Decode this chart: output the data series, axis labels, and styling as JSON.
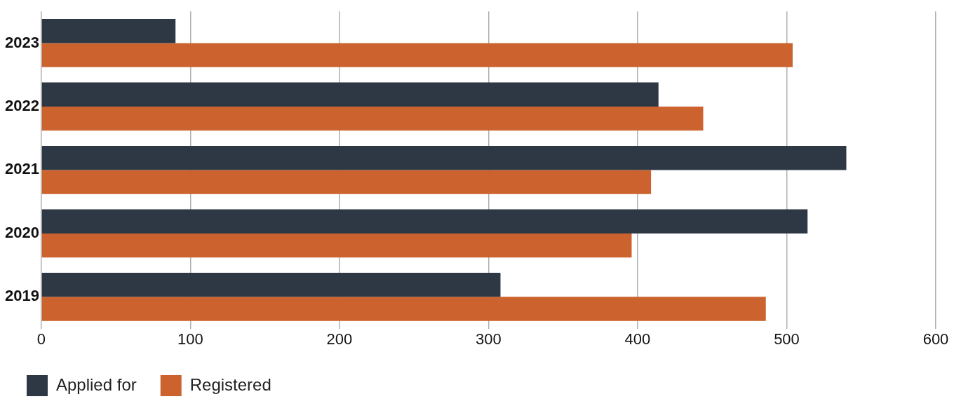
{
  "chart_data": {
    "type": "bar",
    "orientation": "horizontal",
    "categories": [
      "2023",
      "2022",
      "2021",
      "2020",
      "2019"
    ],
    "series": [
      {
        "name": "Applied for",
        "color": "#2e3744",
        "values": [
          90,
          414,
          540,
          514,
          308
        ]
      },
      {
        "name": "Registered",
        "color": "#cc632e",
        "values": [
          504,
          444,
          409,
          396,
          486
        ]
      }
    ],
    "xlim": [
      0,
      600
    ],
    "xticks": [
      0,
      100,
      200,
      300,
      400,
      500,
      600
    ],
    "grid": "x",
    "legend": "bottom left"
  }
}
